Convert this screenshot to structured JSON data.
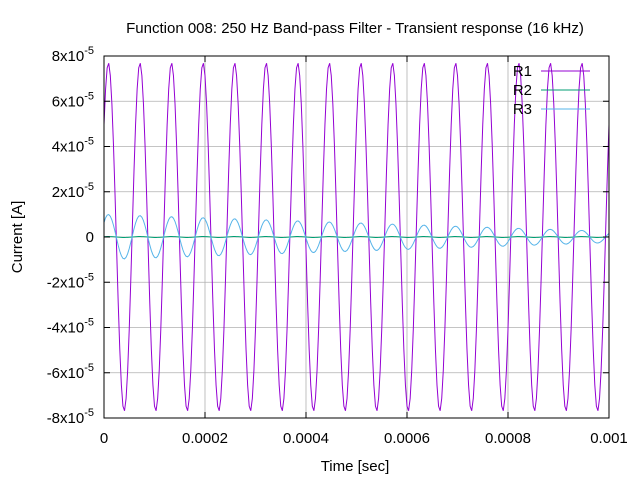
{
  "chart_data": {
    "type": "line",
    "title": "Function 008: 250 Hz Band-pass Filter - Transient response (16 kHz)",
    "xlabel": "Time [sec]",
    "ylabel": "Current [A]",
    "xlim": [
      0,
      0.001
    ],
    "ylim": [
      -8e-05,
      8e-05
    ],
    "grid": true,
    "legend_position": "top-right",
    "x_ticks": [
      {
        "value": 0,
        "label": "0"
      },
      {
        "value": 0.0002,
        "label": "0.0002"
      },
      {
        "value": 0.0004,
        "label": "0.0004"
      },
      {
        "value": 0.0006,
        "label": "0.0006"
      },
      {
        "value": 0.0008,
        "label": "0.0008"
      },
      {
        "value": 0.001,
        "label": "0.001"
      }
    ],
    "y_ticks": [
      {
        "value": 8e-05,
        "mantissa": "8x10",
        "exponent": "-5"
      },
      {
        "value": 6e-05,
        "mantissa": "6x10",
        "exponent": "-5"
      },
      {
        "value": 4e-05,
        "mantissa": "4x10",
        "exponent": "-5"
      },
      {
        "value": 2e-05,
        "mantissa": "2x10",
        "exponent": "-5"
      },
      {
        "value": 0,
        "mantissa": "0",
        "exponent": ""
      },
      {
        "value": -2e-05,
        "mantissa": "-2x10",
        "exponent": "-5"
      },
      {
        "value": -4e-05,
        "mantissa": "-4x10",
        "exponent": "-5"
      },
      {
        "value": -6e-05,
        "mantissa": "-6x10",
        "exponent": "-5"
      },
      {
        "value": -8e-05,
        "mantissa": "-8x10",
        "exponent": "-5"
      }
    ],
    "series": [
      {
        "name": "R1",
        "color": "#9400d3",
        "frequency_hz": 16000,
        "amplitude": 7.7e-05,
        "phase_rad": 0.7,
        "sample_period": 3.125e-06
      },
      {
        "name": "R2",
        "color": "#009e73",
        "frequency_hz": 16000,
        "amplitude": 2e-07,
        "phase_rad": 0.7,
        "sample_period": 3.125e-06
      },
      {
        "name": "R3",
        "color": "#56b4e9",
        "frequency_hz": 16000,
        "amplitude_start": 1e-05,
        "amplitude_end": 2.5e-06,
        "phase_rad": 0.7,
        "sample_period": 3.125e-06
      }
    ]
  }
}
